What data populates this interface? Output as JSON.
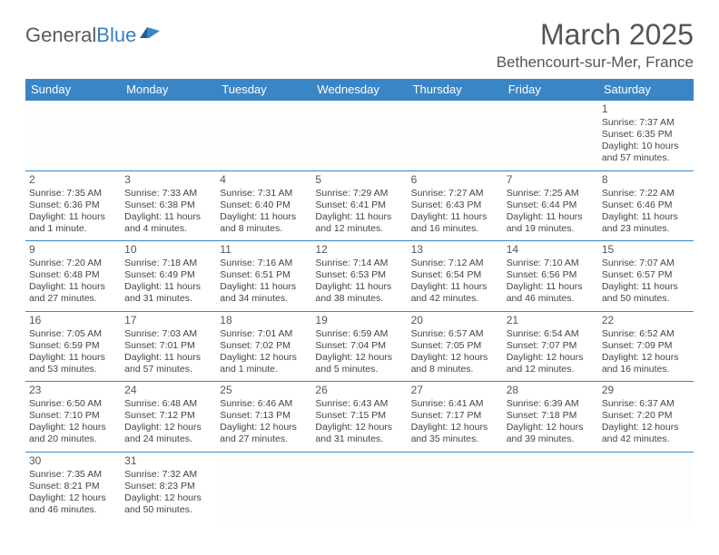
{
  "logo": {
    "text1": "General",
    "text2": "Blue"
  },
  "title": "March 2025",
  "location": "Bethencourt-sur-Mer, France",
  "colors": {
    "header_bg": "#3a85c6",
    "header_fg": "#ffffff",
    "border": "#3a85c6",
    "text": "#444444"
  },
  "weekdays": [
    "Sunday",
    "Monday",
    "Tuesday",
    "Wednesday",
    "Thursday",
    "Friday",
    "Saturday"
  ],
  "weeks": [
    [
      null,
      null,
      null,
      null,
      null,
      null,
      {
        "d": "1",
        "sr": "Sunrise: 7:37 AM",
        "ss": "Sunset: 6:35 PM",
        "dl1": "Daylight: 10 hours",
        "dl2": "and 57 minutes."
      }
    ],
    [
      {
        "d": "2",
        "sr": "Sunrise: 7:35 AM",
        "ss": "Sunset: 6:36 PM",
        "dl1": "Daylight: 11 hours",
        "dl2": "and 1 minute."
      },
      {
        "d": "3",
        "sr": "Sunrise: 7:33 AM",
        "ss": "Sunset: 6:38 PM",
        "dl1": "Daylight: 11 hours",
        "dl2": "and 4 minutes."
      },
      {
        "d": "4",
        "sr": "Sunrise: 7:31 AM",
        "ss": "Sunset: 6:40 PM",
        "dl1": "Daylight: 11 hours",
        "dl2": "and 8 minutes."
      },
      {
        "d": "5",
        "sr": "Sunrise: 7:29 AM",
        "ss": "Sunset: 6:41 PM",
        "dl1": "Daylight: 11 hours",
        "dl2": "and 12 minutes."
      },
      {
        "d": "6",
        "sr": "Sunrise: 7:27 AM",
        "ss": "Sunset: 6:43 PM",
        "dl1": "Daylight: 11 hours",
        "dl2": "and 16 minutes."
      },
      {
        "d": "7",
        "sr": "Sunrise: 7:25 AM",
        "ss": "Sunset: 6:44 PM",
        "dl1": "Daylight: 11 hours",
        "dl2": "and 19 minutes."
      },
      {
        "d": "8",
        "sr": "Sunrise: 7:22 AM",
        "ss": "Sunset: 6:46 PM",
        "dl1": "Daylight: 11 hours",
        "dl2": "and 23 minutes."
      }
    ],
    [
      {
        "d": "9",
        "sr": "Sunrise: 7:20 AM",
        "ss": "Sunset: 6:48 PM",
        "dl1": "Daylight: 11 hours",
        "dl2": "and 27 minutes."
      },
      {
        "d": "10",
        "sr": "Sunrise: 7:18 AM",
        "ss": "Sunset: 6:49 PM",
        "dl1": "Daylight: 11 hours",
        "dl2": "and 31 minutes."
      },
      {
        "d": "11",
        "sr": "Sunrise: 7:16 AM",
        "ss": "Sunset: 6:51 PM",
        "dl1": "Daylight: 11 hours",
        "dl2": "and 34 minutes."
      },
      {
        "d": "12",
        "sr": "Sunrise: 7:14 AM",
        "ss": "Sunset: 6:53 PM",
        "dl1": "Daylight: 11 hours",
        "dl2": "and 38 minutes."
      },
      {
        "d": "13",
        "sr": "Sunrise: 7:12 AM",
        "ss": "Sunset: 6:54 PM",
        "dl1": "Daylight: 11 hours",
        "dl2": "and 42 minutes."
      },
      {
        "d": "14",
        "sr": "Sunrise: 7:10 AM",
        "ss": "Sunset: 6:56 PM",
        "dl1": "Daylight: 11 hours",
        "dl2": "and 46 minutes."
      },
      {
        "d": "15",
        "sr": "Sunrise: 7:07 AM",
        "ss": "Sunset: 6:57 PM",
        "dl1": "Daylight: 11 hours",
        "dl2": "and 50 minutes."
      }
    ],
    [
      {
        "d": "16",
        "sr": "Sunrise: 7:05 AM",
        "ss": "Sunset: 6:59 PM",
        "dl1": "Daylight: 11 hours",
        "dl2": "and 53 minutes."
      },
      {
        "d": "17",
        "sr": "Sunrise: 7:03 AM",
        "ss": "Sunset: 7:01 PM",
        "dl1": "Daylight: 11 hours",
        "dl2": "and 57 minutes."
      },
      {
        "d": "18",
        "sr": "Sunrise: 7:01 AM",
        "ss": "Sunset: 7:02 PM",
        "dl1": "Daylight: 12 hours",
        "dl2": "and 1 minute."
      },
      {
        "d": "19",
        "sr": "Sunrise: 6:59 AM",
        "ss": "Sunset: 7:04 PM",
        "dl1": "Daylight: 12 hours",
        "dl2": "and 5 minutes."
      },
      {
        "d": "20",
        "sr": "Sunrise: 6:57 AM",
        "ss": "Sunset: 7:05 PM",
        "dl1": "Daylight: 12 hours",
        "dl2": "and 8 minutes."
      },
      {
        "d": "21",
        "sr": "Sunrise: 6:54 AM",
        "ss": "Sunset: 7:07 PM",
        "dl1": "Daylight: 12 hours",
        "dl2": "and 12 minutes."
      },
      {
        "d": "22",
        "sr": "Sunrise: 6:52 AM",
        "ss": "Sunset: 7:09 PM",
        "dl1": "Daylight: 12 hours",
        "dl2": "and 16 minutes."
      }
    ],
    [
      {
        "d": "23",
        "sr": "Sunrise: 6:50 AM",
        "ss": "Sunset: 7:10 PM",
        "dl1": "Daylight: 12 hours",
        "dl2": "and 20 minutes."
      },
      {
        "d": "24",
        "sr": "Sunrise: 6:48 AM",
        "ss": "Sunset: 7:12 PM",
        "dl1": "Daylight: 12 hours",
        "dl2": "and 24 minutes."
      },
      {
        "d": "25",
        "sr": "Sunrise: 6:46 AM",
        "ss": "Sunset: 7:13 PM",
        "dl1": "Daylight: 12 hours",
        "dl2": "and 27 minutes."
      },
      {
        "d": "26",
        "sr": "Sunrise: 6:43 AM",
        "ss": "Sunset: 7:15 PM",
        "dl1": "Daylight: 12 hours",
        "dl2": "and 31 minutes."
      },
      {
        "d": "27",
        "sr": "Sunrise: 6:41 AM",
        "ss": "Sunset: 7:17 PM",
        "dl1": "Daylight: 12 hours",
        "dl2": "and 35 minutes."
      },
      {
        "d": "28",
        "sr": "Sunrise: 6:39 AM",
        "ss": "Sunset: 7:18 PM",
        "dl1": "Daylight: 12 hours",
        "dl2": "and 39 minutes."
      },
      {
        "d": "29",
        "sr": "Sunrise: 6:37 AM",
        "ss": "Sunset: 7:20 PM",
        "dl1": "Daylight: 12 hours",
        "dl2": "and 42 minutes."
      }
    ],
    [
      {
        "d": "30",
        "sr": "Sunrise: 7:35 AM",
        "ss": "Sunset: 8:21 PM",
        "dl1": "Daylight: 12 hours",
        "dl2": "and 46 minutes."
      },
      {
        "d": "31",
        "sr": "Sunrise: 7:32 AM",
        "ss": "Sunset: 8:23 PM",
        "dl1": "Daylight: 12 hours",
        "dl2": "and 50 minutes."
      },
      null,
      null,
      null,
      null,
      null
    ]
  ]
}
